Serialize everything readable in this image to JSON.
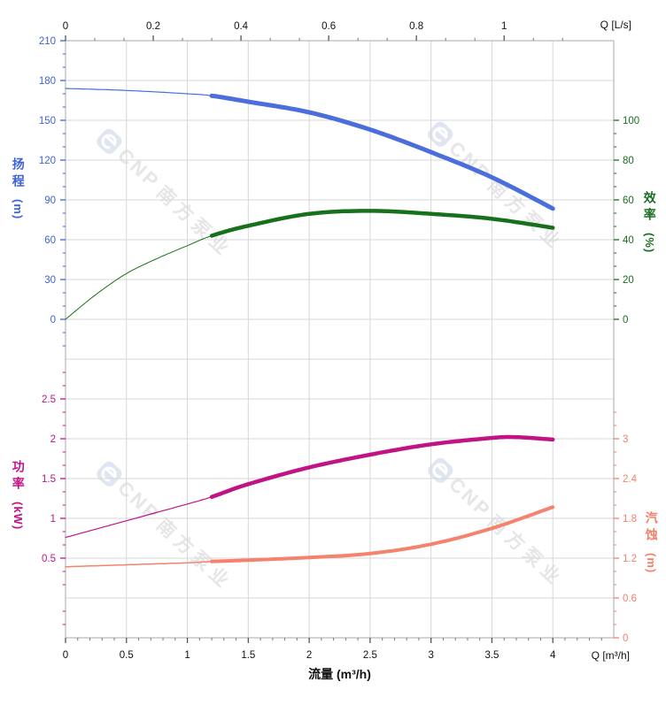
{
  "watermark": {
    "brand": "CNP",
    "company": "南方泵业"
  },
  "top_axis": {
    "unit_label": "Q [L/s]",
    "ticks": [
      0,
      0.2,
      0.4,
      0.6,
      0.8,
      1
    ],
    "minor_divisions": 3,
    "m3h_per_ls": 3.6
  },
  "bottom_axis": {
    "title": "流量 (m³/h)",
    "unit_label": "Q [m³/h]",
    "ticks": [
      0,
      0.5,
      1,
      1.5,
      2,
      2.5,
      3,
      3.5,
      4
    ],
    "minor_divisions": 5,
    "max": 4.5
  },
  "axes": {
    "head": {
      "label": "扬程",
      "unit": "(m)",
      "side": "left",
      "color": "#3E62D9",
      "max": 210,
      "step": 30,
      "first_row": 0,
      "ticks": [
        210,
        180,
        150,
        120,
        90,
        60,
        30,
        0
      ],
      "minor_rows": [
        0,
        8
      ]
    },
    "eff": {
      "label": "效率",
      "unit": "(%)",
      "side": "right",
      "color": "#1B6E20",
      "max": 100,
      "step": 20,
      "first_row": 2,
      "ticks": [
        100,
        80,
        60,
        40,
        20,
        0
      ],
      "minor_rows": [
        2,
        7
      ]
    },
    "power": {
      "label": "功率",
      "unit": "(kW)",
      "side": "left",
      "color": "#C2138A",
      "max": 2.5,
      "step": 0.5,
      "first_row": 9,
      "ticks": [
        2.5,
        2,
        1.5,
        1,
        0.5
      ],
      "minor_rows": [
        8,
        15
      ]
    },
    "npsh": {
      "label": "汽蚀",
      "unit": "(m)",
      "side": "right",
      "color": "#F4806B",
      "max": 3.6,
      "step": 0.6,
      "first_row": 9,
      "ticks": [
        3,
        2.4,
        1.8,
        1.2,
        0.6,
        0
      ],
      "minor_rows": [
        9,
        15
      ]
    }
  },
  "chart_data": {
    "type": "line",
    "x_unit": "m³/h",
    "x_range": [
      0,
      4.5
    ],
    "grid": true,
    "series": [
      {
        "id": "head",
        "axis": "head",
        "color": "#4A6EDC",
        "thin_width": 1.2,
        "thick_width": 5,
        "split_at": 1.2,
        "points": [
          [
            0,
            174
          ],
          [
            0.5,
            172.5
          ],
          [
            1,
            170
          ],
          [
            1.2,
            168.5
          ],
          [
            1.5,
            164
          ],
          [
            2,
            156
          ],
          [
            2.5,
            143
          ],
          [
            3,
            126
          ],
          [
            3.5,
            107
          ],
          [
            4,
            83.5
          ]
        ]
      },
      {
        "id": "efficiency",
        "axis": "eff",
        "color": "#17701A",
        "thin_width": 1,
        "thick_width": 4.5,
        "split_at": 1.2,
        "points": [
          [
            0,
            0
          ],
          [
            0.25,
            12.5
          ],
          [
            0.5,
            23
          ],
          [
            0.75,
            30.5
          ],
          [
            1,
            37
          ],
          [
            1.2,
            42
          ],
          [
            1.5,
            47
          ],
          [
            2,
            53
          ],
          [
            2.5,
            54.5
          ],
          [
            3,
            53
          ],
          [
            3.5,
            50.5
          ],
          [
            4,
            46
          ]
        ]
      },
      {
        "id": "power",
        "axis": "power",
        "color": "#C01384",
        "thin_width": 1.2,
        "thick_width": 4.5,
        "split_at": 1.2,
        "points": [
          [
            0,
            0.76
          ],
          [
            0.5,
            0.97
          ],
          [
            1,
            1.18
          ],
          [
            1.2,
            1.27
          ],
          [
            1.5,
            1.43
          ],
          [
            2,
            1.64
          ],
          [
            2.5,
            1.8
          ],
          [
            3,
            1.93
          ],
          [
            3.5,
            2.01
          ],
          [
            3.7,
            2.02
          ],
          [
            4,
            1.99
          ]
        ]
      },
      {
        "id": "npsh",
        "axis": "npsh",
        "color": "#F4826C",
        "thin_width": 1.5,
        "thick_width": 4,
        "split_at": 1.2,
        "points": [
          [
            0,
            1.07
          ],
          [
            0.5,
            1.1
          ],
          [
            1,
            1.13
          ],
          [
            1.2,
            1.15
          ],
          [
            1.5,
            1.17
          ],
          [
            2,
            1.21
          ],
          [
            2.5,
            1.27
          ],
          [
            3,
            1.41
          ],
          [
            3.5,
            1.65
          ],
          [
            4,
            1.97
          ]
        ]
      }
    ]
  }
}
